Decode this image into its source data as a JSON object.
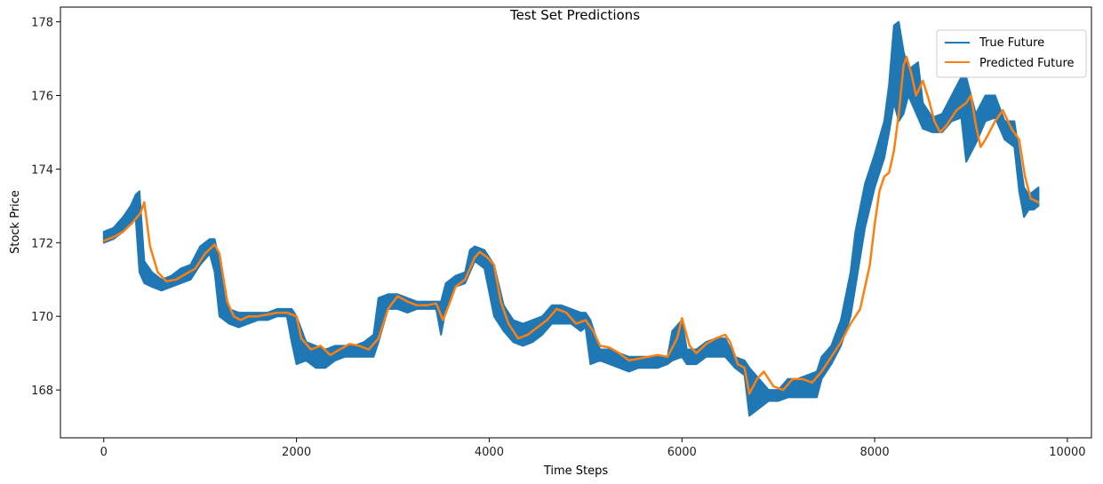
{
  "chart_data": {
    "type": "line",
    "title": "Test Set Predictions",
    "xlabel": "Time Steps",
    "ylabel": "Stock Price",
    "xlim": [
      -450,
      10250
    ],
    "ylim": [
      166.7,
      178.4
    ],
    "xticks": [
      0,
      2000,
      4000,
      6000,
      8000,
      10000
    ],
    "yticks": [
      168,
      170,
      172,
      174,
      176,
      178
    ],
    "grid": false,
    "legend_position": "top-right",
    "series": [
      {
        "name": "True Future",
        "color": "#1f77b4",
        "band": [
          [
            0,
            172.0,
            172.3
          ],
          [
            100,
            172.1,
            172.4
          ],
          [
            200,
            172.3,
            172.7
          ],
          [
            280,
            172.5,
            173.0
          ],
          [
            330,
            172.7,
            173.3
          ],
          [
            370,
            171.2,
            173.4
          ],
          [
            420,
            170.9,
            171.5
          ],
          [
            500,
            170.8,
            171.2
          ],
          [
            600,
            170.7,
            171.0
          ],
          [
            700,
            170.8,
            171.1
          ],
          [
            800,
            170.9,
            171.3
          ],
          [
            900,
            171.0,
            171.4
          ],
          [
            1000,
            171.4,
            171.9
          ],
          [
            1100,
            171.7,
            172.1
          ],
          [
            1150,
            171.2,
            172.1
          ],
          [
            1200,
            170.0,
            171.5
          ],
          [
            1300,
            169.8,
            170.2
          ],
          [
            1400,
            169.7,
            170.1
          ],
          [
            1500,
            169.8,
            170.1
          ],
          [
            1600,
            169.9,
            170.1
          ],
          [
            1700,
            169.9,
            170.1
          ],
          [
            1800,
            170.0,
            170.2
          ],
          [
            1900,
            170.0,
            170.2
          ],
          [
            1950,
            169.3,
            170.2
          ],
          [
            2000,
            168.7,
            170.0
          ],
          [
            2100,
            168.8,
            169.3
          ],
          [
            2200,
            168.6,
            169.2
          ],
          [
            2300,
            168.6,
            169.1
          ],
          [
            2400,
            168.8,
            169.2
          ],
          [
            2500,
            168.9,
            169.2
          ],
          [
            2600,
            168.9,
            169.2
          ],
          [
            2700,
            168.9,
            169.3
          ],
          [
            2800,
            168.9,
            169.5
          ],
          [
            2850,
            169.3,
            170.5
          ],
          [
            2950,
            170.2,
            170.6
          ],
          [
            3050,
            170.2,
            170.6
          ],
          [
            3150,
            170.1,
            170.5
          ],
          [
            3250,
            170.2,
            170.4
          ],
          [
            3350,
            170.2,
            170.4
          ],
          [
            3450,
            170.2,
            170.4
          ],
          [
            3500,
            169.5,
            170.4
          ],
          [
            3550,
            170.2,
            170.9
          ],
          [
            3650,
            170.8,
            171.1
          ],
          [
            3750,
            170.9,
            171.2
          ],
          [
            3800,
            171.2,
            171.8
          ],
          [
            3850,
            171.5,
            171.9
          ],
          [
            3950,
            171.3,
            171.8
          ],
          [
            4050,
            170.0,
            171.4
          ],
          [
            4150,
            169.6,
            170.3
          ],
          [
            4250,
            169.3,
            169.9
          ],
          [
            4350,
            169.2,
            169.8
          ],
          [
            4450,
            169.3,
            169.9
          ],
          [
            4550,
            169.5,
            170.0
          ],
          [
            4650,
            169.8,
            170.3
          ],
          [
            4750,
            169.8,
            170.3
          ],
          [
            4850,
            169.8,
            170.2
          ],
          [
            4950,
            169.6,
            170.1
          ],
          [
            5000,
            169.7,
            170.1
          ],
          [
            5050,
            168.7,
            169.9
          ],
          [
            5150,
            168.8,
            169.1
          ],
          [
            5250,
            168.7,
            169.1
          ],
          [
            5350,
            168.6,
            169.0
          ],
          [
            5450,
            168.5,
            168.9
          ],
          [
            5550,
            168.6,
            168.9
          ],
          [
            5650,
            168.6,
            168.9
          ],
          [
            5750,
            168.6,
            168.9
          ],
          [
            5850,
            168.7,
            168.9
          ],
          [
            5900,
            168.8,
            169.6
          ],
          [
            6000,
            168.9,
            169.9
          ],
          [
            6050,
            168.7,
            169.1
          ],
          [
            6150,
            168.7,
            169.1
          ],
          [
            6250,
            168.9,
            169.3
          ],
          [
            6350,
            168.9,
            169.4
          ],
          [
            6450,
            168.9,
            169.4
          ],
          [
            6550,
            168.6,
            168.9
          ],
          [
            6650,
            168.4,
            168.8
          ],
          [
            6700,
            167.3,
            168.6
          ],
          [
            6800,
            167.5,
            168.3
          ],
          [
            6900,
            167.7,
            168.0
          ],
          [
            7000,
            167.7,
            168.0
          ],
          [
            7100,
            167.8,
            168.3
          ],
          [
            7200,
            167.8,
            168.3
          ],
          [
            7300,
            167.8,
            168.4
          ],
          [
            7400,
            167.8,
            168.5
          ],
          [
            7450,
            168.3,
            168.9
          ],
          [
            7550,
            168.7,
            169.2
          ],
          [
            7650,
            169.2,
            169.9
          ],
          [
            7750,
            170.0,
            171.2
          ],
          [
            7800,
            170.8,
            172.3
          ],
          [
            7900,
            172.4,
            173.6
          ],
          [
            8000,
            173.5,
            174.4
          ],
          [
            8100,
            174.3,
            175.3
          ],
          [
            8150,
            175.0,
            176.3
          ],
          [
            8200,
            175.8,
            177.9
          ],
          [
            8250,
            175.3,
            178.0
          ],
          [
            8300,
            175.5,
            177.2
          ],
          [
            8350,
            176.0,
            176.7
          ],
          [
            8450,
            175.4,
            176.9
          ],
          [
            8500,
            175.1,
            175.8
          ],
          [
            8600,
            175.0,
            175.4
          ],
          [
            8700,
            175.0,
            175.5
          ],
          [
            8800,
            175.3,
            176.0
          ],
          [
            8900,
            175.4,
            176.5
          ],
          [
            8950,
            174.2,
            176.5
          ],
          [
            9050,
            174.7,
            175.5
          ],
          [
            9150,
            175.3,
            176.0
          ],
          [
            9250,
            175.4,
            176.0
          ],
          [
            9350,
            174.8,
            175.3
          ],
          [
            9450,
            174.6,
            175.3
          ],
          [
            9500,
            173.4,
            174.4
          ],
          [
            9550,
            172.7,
            173.5
          ],
          [
            9600,
            172.9,
            173.3
          ],
          [
            9650,
            172.9,
            173.4
          ],
          [
            9700,
            173.0,
            173.5
          ]
        ]
      },
      {
        "name": "Predicted Future",
        "color": "#ff7f0e",
        "points": [
          [
            0,
            172.05
          ],
          [
            100,
            172.15
          ],
          [
            200,
            172.3
          ],
          [
            300,
            172.55
          ],
          [
            380,
            172.8
          ],
          [
            420,
            173.1
          ],
          [
            480,
            171.9
          ],
          [
            560,
            171.2
          ],
          [
            650,
            170.95
          ],
          [
            750,
            171.0
          ],
          [
            850,
            171.15
          ],
          [
            950,
            171.3
          ],
          [
            1050,
            171.7
          ],
          [
            1150,
            171.95
          ],
          [
            1200,
            171.7
          ],
          [
            1280,
            170.4
          ],
          [
            1350,
            170.0
          ],
          [
            1420,
            169.9
          ],
          [
            1500,
            170.0
          ],
          [
            1600,
            170.0
          ],
          [
            1700,
            170.05
          ],
          [
            1800,
            170.1
          ],
          [
            1900,
            170.1
          ],
          [
            2000,
            170.0
          ],
          [
            2050,
            169.4
          ],
          [
            2150,
            169.1
          ],
          [
            2250,
            169.2
          ],
          [
            2350,
            168.95
          ],
          [
            2450,
            169.1
          ],
          [
            2550,
            169.25
          ],
          [
            2650,
            169.2
          ],
          [
            2750,
            169.1
          ],
          [
            2850,
            169.4
          ],
          [
            2950,
            170.2
          ],
          [
            3050,
            170.55
          ],
          [
            3150,
            170.4
          ],
          [
            3250,
            170.3
          ],
          [
            3350,
            170.3
          ],
          [
            3450,
            170.35
          ],
          [
            3520,
            169.9
          ],
          [
            3580,
            170.3
          ],
          [
            3650,
            170.8
          ],
          [
            3750,
            171.0
          ],
          [
            3850,
            171.6
          ],
          [
            3900,
            171.75
          ],
          [
            3980,
            171.6
          ],
          [
            4050,
            171.4
          ],
          [
            4120,
            170.4
          ],
          [
            4200,
            169.8
          ],
          [
            4300,
            169.4
          ],
          [
            4400,
            169.5
          ],
          [
            4500,
            169.7
          ],
          [
            4600,
            169.9
          ],
          [
            4700,
            170.2
          ],
          [
            4800,
            170.1
          ],
          [
            4900,
            169.8
          ],
          [
            5000,
            169.9
          ],
          [
            5080,
            169.6
          ],
          [
            5150,
            169.2
          ],
          [
            5250,
            169.15
          ],
          [
            5350,
            169.0
          ],
          [
            5450,
            168.8
          ],
          [
            5550,
            168.85
          ],
          [
            5650,
            168.9
          ],
          [
            5750,
            168.95
          ],
          [
            5850,
            168.9
          ],
          [
            5950,
            169.4
          ],
          [
            6000,
            169.95
          ],
          [
            6080,
            169.2
          ],
          [
            6150,
            169.0
          ],
          [
            6250,
            169.25
          ],
          [
            6350,
            169.4
          ],
          [
            6450,
            169.5
          ],
          [
            6500,
            169.3
          ],
          [
            6580,
            168.7
          ],
          [
            6650,
            168.6
          ],
          [
            6700,
            167.9
          ],
          [
            6780,
            168.3
          ],
          [
            6850,
            168.5
          ],
          [
            6950,
            168.1
          ],
          [
            7050,
            168.0
          ],
          [
            7150,
            168.3
          ],
          [
            7250,
            168.3
          ],
          [
            7350,
            168.2
          ],
          [
            7450,
            168.5
          ],
          [
            7550,
            168.9
          ],
          [
            7650,
            169.3
          ],
          [
            7750,
            169.8
          ],
          [
            7850,
            170.2
          ],
          [
            7950,
            171.4
          ],
          [
            8000,
            172.5
          ],
          [
            8050,
            173.4
          ],
          [
            8100,
            173.8
          ],
          [
            8150,
            173.9
          ],
          [
            8200,
            174.5
          ],
          [
            8250,
            175.5
          ],
          [
            8300,
            176.8
          ],
          [
            8330,
            177.05
          ],
          [
            8380,
            176.6
          ],
          [
            8430,
            176.0
          ],
          [
            8500,
            176.4
          ],
          [
            8560,
            175.9
          ],
          [
            8620,
            175.3
          ],
          [
            8680,
            175.0
          ],
          [
            8750,
            175.2
          ],
          [
            8850,
            175.6
          ],
          [
            8950,
            175.8
          ],
          [
            9000,
            176.0
          ],
          [
            9050,
            175.2
          ],
          [
            9100,
            174.6
          ],
          [
            9150,
            174.8
          ],
          [
            9250,
            175.3
          ],
          [
            9330,
            175.6
          ],
          [
            9420,
            175.1
          ],
          [
            9500,
            174.8
          ],
          [
            9560,
            173.8
          ],
          [
            9620,
            173.2
          ],
          [
            9700,
            173.1
          ]
        ]
      }
    ]
  }
}
